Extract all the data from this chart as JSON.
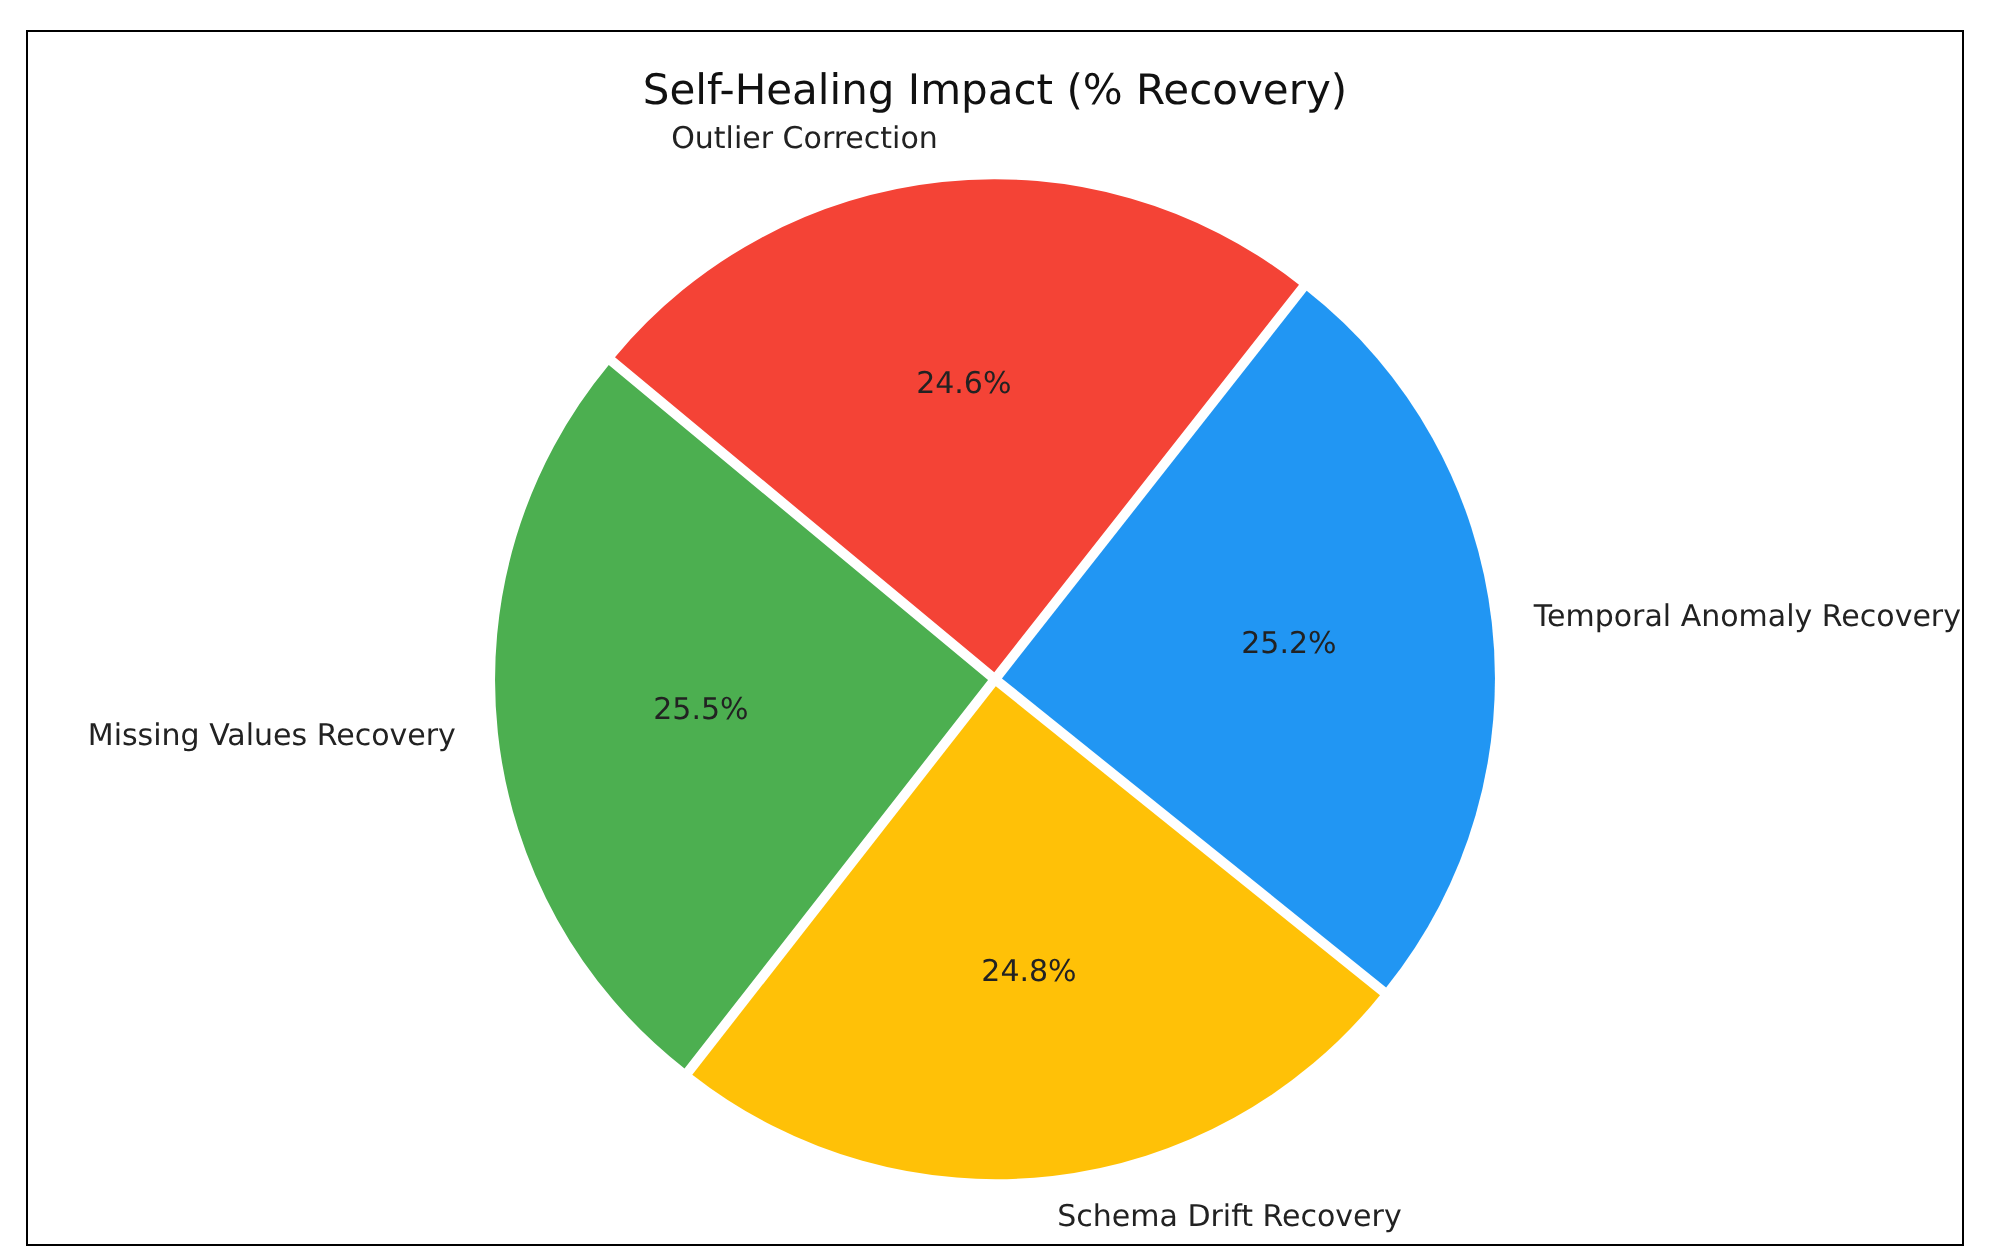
{
  "chart_data": {
    "type": "pie",
    "title": "Self-Healing Impact (% Recovery)",
    "categories": [
      "Missing Values Recovery",
      "Outlier Correction",
      "Temporal Anomaly Recovery",
      "Schema Drift Recovery"
    ],
    "values": [
      25.5,
      24.6,
      25.2,
      24.8
    ],
    "colors": [
      "#4caf50",
      "#f44336",
      "#2196f3",
      "#ffc107"
    ],
    "value_labels": [
      "25.5%",
      "24.6%",
      "25.2%",
      "24.8%"
    ],
    "legend": false
  }
}
